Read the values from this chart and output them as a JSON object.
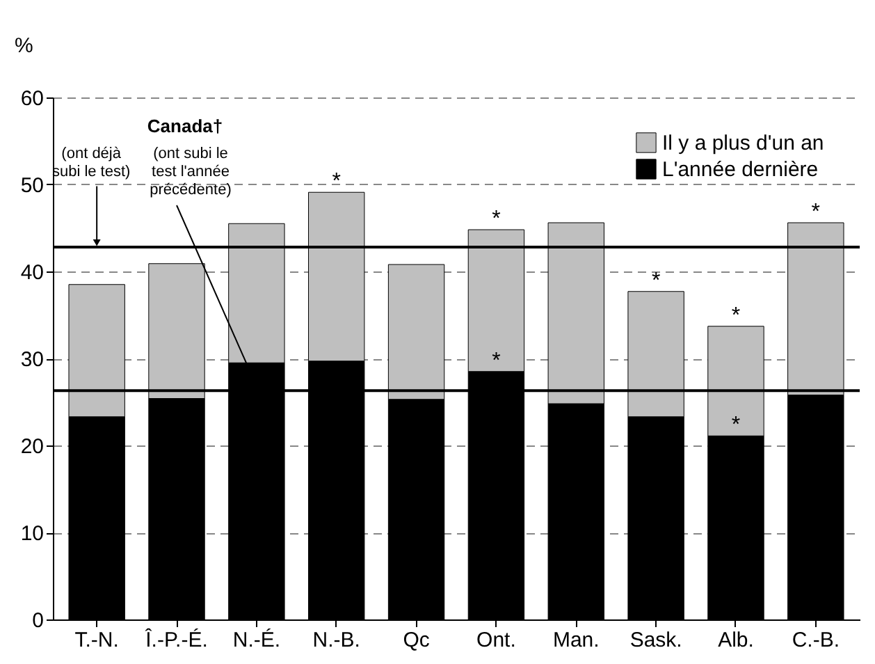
{
  "chart_data": {
    "type": "bar",
    "stacked": true,
    "ylabel": "%",
    "categories": [
      "T.-N.",
      "Î.-P.-É.",
      "N.-É.",
      "N.-B.",
      "Qc",
      "Ont.",
      "Man.",
      "Sask.",
      "Alb.",
      "C.-B."
    ],
    "series": [
      {
        "name": "L'année dernière",
        "color": "#000000",
        "values": [
          23.3,
          25.4,
          29.5,
          29.7,
          25.3,
          28.5,
          24.8,
          23.3,
          21.1,
          25.8
        ]
      },
      {
        "name": "Il y a plus d'un an",
        "color": "#bfbfbf",
        "values": [
          15.2,
          15.5,
          16.0,
          19.4,
          15.5,
          16.3,
          20.8,
          14.4,
          12.6,
          19.8
        ]
      }
    ],
    "ylim": [
      0,
      60
    ],
    "yticks": [
      0,
      10,
      20,
      30,
      40,
      50,
      60
    ],
    "grid": "y",
    "legend": "top right",
    "ref_lines": [
      {
        "axis": "y",
        "value": 42.8,
        "label": "(ont déjà subi le test)",
        "color": "#000000"
      },
      {
        "axis": "y",
        "value": 26.3,
        "label": "(ont subi le test l'année précédente)",
        "color": "#000000"
      }
    ],
    "annotations": [
      "Canada†",
      {
        "text": "*",
        "x": "N.-B.",
        "y": 49.1
      },
      {
        "text": "*",
        "x": "Ont.",
        "y": 44.8
      },
      {
        "text": "*",
        "x": "Ont.",
        "y": 28.5
      },
      {
        "text": "*",
        "x": "Sask.",
        "y": 37.7
      },
      {
        "text": "*",
        "x": "Alb.",
        "y": 33.7
      },
      {
        "text": "*",
        "x": "Alb.",
        "y": 21.1
      },
      {
        "text": "*",
        "x": "C.-B.",
        "y": 45.6
      }
    ]
  }
}
